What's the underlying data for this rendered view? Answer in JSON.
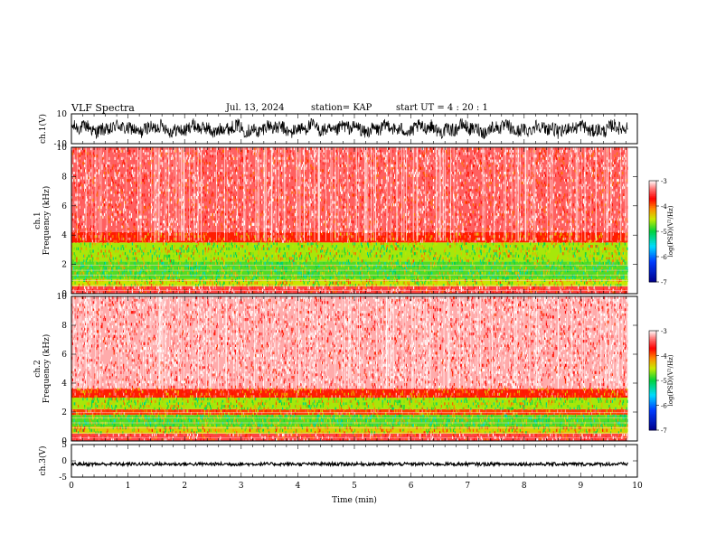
{
  "header": {
    "title": "VLF Spectra",
    "date": "Jul. 13, 2024",
    "station": "station= KAP",
    "start_ut": "start UT =  4 : 20 : 1"
  },
  "chart_data": [
    {
      "type": "line",
      "panel": "ch1-waveform",
      "ylabel": "ch.1(V)",
      "ylim": [
        -10,
        10
      ],
      "ytick_labels": [
        "-10",
        "10"
      ],
      "x_range_min": [
        0,
        9.83
      ],
      "series": [
        {
          "color": "#000000"
        }
      ]
    },
    {
      "type": "heatmap",
      "panel": "ch1-spectrogram",
      "ylabel": "ch.1\nFrequency (kHz)",
      "ylim": [
        0,
        10
      ],
      "ytick_labels": [
        "0",
        "2",
        "4",
        "6",
        "8",
        "10"
      ],
      "x_range_min": [
        0,
        9.83
      ],
      "colorbar": {
        "label": "log(PSD)(V²/Hz)",
        "range": [
          -7,
          -3
        ],
        "tick_labels": [
          "-3",
          "-4",
          "-5",
          "-6",
          "-7"
        ]
      },
      "bands": [
        {
          "freq_khz": [
            0,
            0.5
          ],
          "log_psd": -3.5
        },
        {
          "freq_khz": [
            0.5,
            1.0
          ],
          "log_psd": -4.5
        },
        {
          "freq_khz": [
            1.0,
            2.2
          ],
          "log_psd": -4.8
        },
        {
          "freq_khz": [
            2.2,
            3.5
          ],
          "log_psd": -4.6
        },
        {
          "freq_khz": [
            3.5,
            4.2
          ],
          "log_psd": -3.8
        },
        {
          "freq_khz": [
            4.2,
            10.0
          ],
          "log_psd": -3.4
        }
      ]
    },
    {
      "type": "heatmap",
      "panel": "ch2-spectrogram",
      "ylabel": "ch.2\nFrequency (kHz)",
      "ylim": [
        0,
        10
      ],
      "ytick_labels": [
        "0",
        "2",
        "4",
        "6",
        "8",
        "10"
      ],
      "x_range_min": [
        0,
        9.83
      ],
      "colorbar": {
        "label": "log(PSD)(V²/Hz)",
        "range": [
          -7,
          -3
        ],
        "tick_labels": [
          "-3",
          "-4",
          "-5",
          "-6",
          "-7"
        ]
      },
      "bands": [
        {
          "freq_khz": [
            0,
            0.5
          ],
          "log_psd": -3.5
        },
        {
          "freq_khz": [
            0.5,
            1.0
          ],
          "log_psd": -4.4
        },
        {
          "freq_khz": [
            1.0,
            1.8
          ],
          "log_psd": -4.8
        },
        {
          "freq_khz": [
            1.8,
            2.2
          ],
          "log_psd": -3.9
        },
        {
          "freq_khz": [
            2.2,
            3.0
          ],
          "log_psd": -4.6
        },
        {
          "freq_khz": [
            3.0,
            3.6
          ],
          "log_psd": -3.8
        },
        {
          "freq_khz": [
            3.6,
            10.0
          ],
          "log_psd": -3.2
        }
      ]
    },
    {
      "type": "line",
      "panel": "ch3-waveform",
      "ylabel": "ch.3(V)",
      "ylim": [
        -5,
        5
      ],
      "ytick_labels": [
        "-5",
        "0",
        "5"
      ],
      "x_range_min": [
        0,
        9.83
      ],
      "xlabel": "Time (min)",
      "xlim": [
        0,
        10
      ],
      "xtick_labels": [
        "0",
        "1",
        "2",
        "3",
        "4",
        "5",
        "6",
        "7",
        "8",
        "9",
        "10"
      ],
      "series": [
        {
          "color": "#000000",
          "mean": -1.0
        }
      ]
    }
  ]
}
